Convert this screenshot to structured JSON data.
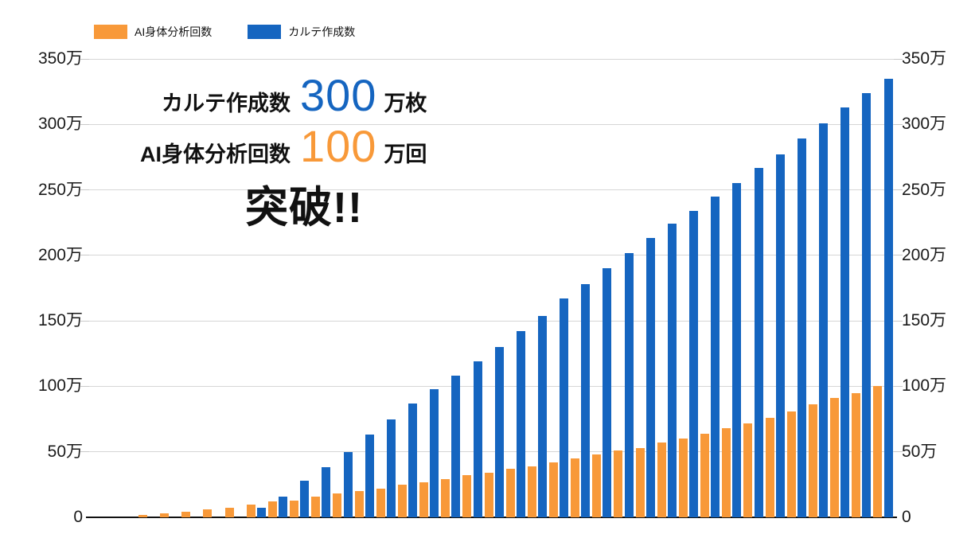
{
  "colors": {
    "orange": "#F89939",
    "blue": "#1565C0",
    "grid": "#D6D6D6",
    "axis_line": "#111111",
    "text": "#1A1A1A"
  },
  "legend": {
    "items": [
      {
        "label": "AI身体分析回数",
        "color": "#F89939"
      },
      {
        "label": "カルテ作成数",
        "color": "#1565C0"
      }
    ]
  },
  "annotation": {
    "line1_label": "カルテ作成数",
    "line1_value": "300",
    "line1_suffix": "万枚",
    "line2_label": "AI身体分析回数",
    "line2_value": "100",
    "line2_suffix": "万回",
    "line3": "突破!!"
  },
  "chart_data": {
    "type": "bar",
    "unit": "万",
    "unit_note": "all values are in units of 10,000 (万)",
    "ylim": [
      0,
      350
    ],
    "grid": true,
    "legend_position": "top-left",
    "x_labels_visible": false,
    "n_groups": 35,
    "y_axis": [
      {
        "v": 0,
        "label": "0"
      },
      {
        "v": 50,
        "label": "50万"
      },
      {
        "v": 100,
        "label": "100万"
      },
      {
        "v": 150,
        "label": "150万"
      },
      {
        "v": 200,
        "label": "200万"
      },
      {
        "v": 250,
        "label": "250万"
      },
      {
        "v": 300,
        "label": "300万"
      },
      {
        "v": 350,
        "label": "350万"
      }
    ],
    "series": [
      {
        "name": "AI身体分析回数",
        "color": "#F89939",
        "values": [
          2,
          3,
          4,
          6,
          7,
          10,
          12,
          13,
          16,
          18,
          20,
          22,
          25,
          27,
          29,
          32,
          34,
          37,
          39,
          42,
          45,
          48,
          51,
          53,
          57,
          60,
          64,
          68,
          72,
          76,
          81,
          86,
          91,
          95,
          100
        ]
      },
      {
        "name": "カルテ作成数",
        "color": "#1565C0",
        "values": [
          0,
          0,
          0,
          0,
          0,
          7,
          16,
          28,
          38,
          50,
          63,
          75,
          87,
          98,
          108,
          119,
          130,
          142,
          154,
          167,
          178,
          190,
          202,
          213,
          224,
          234,
          245,
          255,
          267,
          277,
          289,
          301,
          313,
          324,
          335
        ]
      }
    ]
  }
}
